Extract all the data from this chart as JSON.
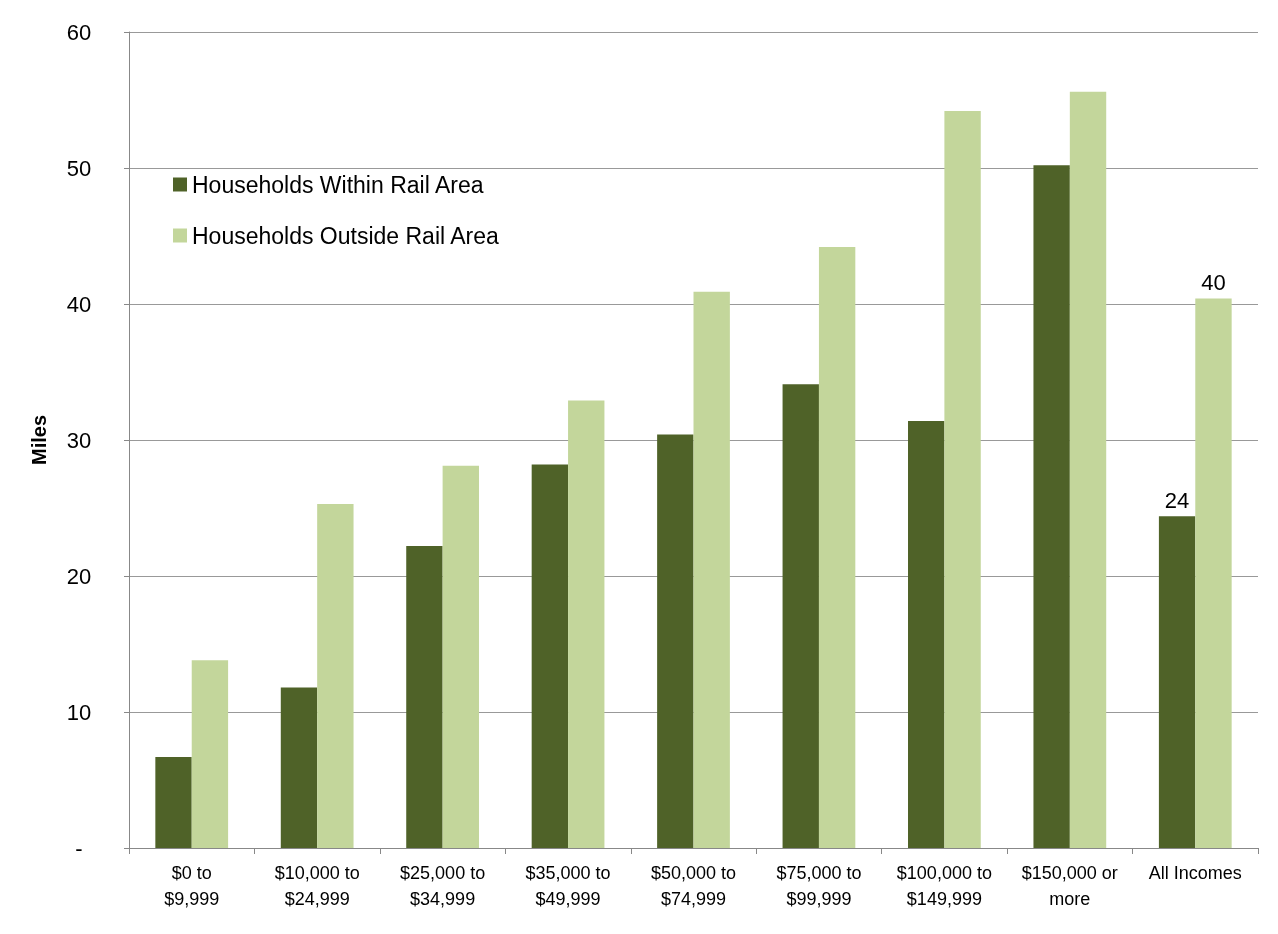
{
  "chart_data": {
    "type": "bar",
    "ylabel": "Miles",
    "categories": [
      "$0 to\n$9,999",
      "$10,000 to\n$24,999",
      "$25,000 to\n$34,999",
      "$35,000 to\n$49,999",
      "$50,000 to\n$74,999",
      "$75,000 to\n$99,999",
      "$100,000 to\n$149,999",
      "$150,000 or\nmore",
      "All Incomes"
    ],
    "series": [
      {
        "name": "Households Within Rail Area",
        "color": "#4f6228",
        "values": [
          6.7,
          11.8,
          22.2,
          28.2,
          30.4,
          34.1,
          31.4,
          50.2,
          24.4
        ],
        "value_labels": [
          null,
          null,
          null,
          null,
          null,
          null,
          null,
          null,
          "24"
        ]
      },
      {
        "name": "Households Outside Rail Area",
        "color": "#c3d69b",
        "values": [
          13.8,
          25.3,
          28.1,
          32.9,
          40.9,
          44.2,
          54.2,
          55.6,
          40.4
        ],
        "value_labels": [
          null,
          null,
          null,
          null,
          null,
          null,
          null,
          null,
          "40"
        ]
      }
    ],
    "ylim": [
      0,
      60
    ],
    "yticks": [
      {
        "value": 0,
        "label": "-"
      },
      10,
      20,
      30,
      40,
      50,
      60
    ],
    "grid": "y",
    "legend": "top left"
  }
}
